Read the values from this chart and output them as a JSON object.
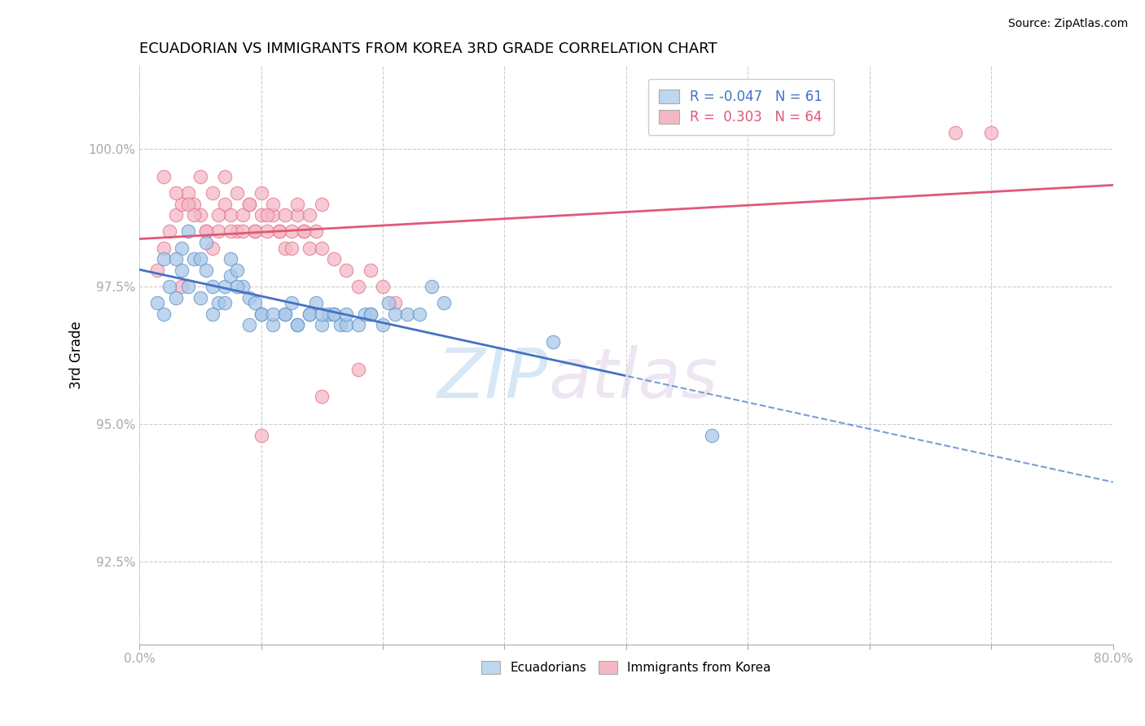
{
  "title": "ECUADORIAN VS IMMIGRANTS FROM KOREA 3RD GRADE CORRELATION CHART",
  "source": "Source: ZipAtlas.com",
  "xlabel": "",
  "ylabel": "3rd Grade",
  "xlim": [
    0.0,
    80.0
  ],
  "ylim": [
    91.0,
    101.5
  ],
  "xticks": [
    0.0,
    10.0,
    20.0,
    30.0,
    40.0,
    50.0,
    60.0,
    70.0,
    80.0
  ],
  "xtick_labels": [
    "0.0%",
    "",
    "",
    "",
    "",
    "",
    "",
    "",
    "80.0%"
  ],
  "ytick_vals": [
    92.5,
    95.0,
    97.5,
    100.0
  ],
  "ytick_labels": [
    "92.5%",
    "95.0%",
    "97.5%",
    "100.0%"
  ],
  "blue_label": "Ecuadorians",
  "pink_label": "Immigrants from Korea",
  "blue_R": -0.047,
  "blue_N": 61,
  "pink_R": 0.303,
  "pink_N": 64,
  "blue_color": "#A8C8E8",
  "pink_color": "#F5B8C4",
  "blue_edge_color": "#6090C8",
  "pink_edge_color": "#E07090",
  "blue_line_color": "#4472C4",
  "pink_line_color": "#E05878",
  "legend_box_blue": "#BDD7EE",
  "legend_box_pink": "#F4B8C4",
  "watermark_zip": "ZIP",
  "watermark_atlas": "atlas",
  "blue_scatter_x": [
    1.5,
    2.0,
    2.5,
    3.0,
    3.5,
    3.5,
    4.0,
    4.5,
    5.0,
    5.5,
    5.5,
    6.0,
    6.5,
    7.0,
    7.5,
    7.5,
    8.0,
    8.5,
    9.0,
    9.5,
    10.0,
    11.0,
    12.0,
    12.5,
    13.0,
    14.0,
    14.5,
    15.0,
    15.5,
    16.0,
    16.5,
    17.0,
    18.0,
    18.5,
    19.0,
    20.0,
    20.5,
    21.0,
    22.0,
    23.0,
    24.0,
    25.0,
    2.0,
    3.0,
    4.0,
    5.0,
    6.0,
    7.0,
    8.0,
    9.0,
    10.0,
    11.0,
    12.0,
    13.0,
    14.0,
    15.0,
    16.0,
    17.0,
    19.0,
    34.0,
    47.0
  ],
  "blue_scatter_y": [
    97.2,
    97.0,
    97.5,
    97.3,
    97.8,
    98.2,
    98.5,
    98.0,
    98.0,
    98.3,
    97.8,
    97.5,
    97.2,
    97.5,
    98.0,
    97.7,
    97.8,
    97.5,
    97.3,
    97.2,
    97.0,
    96.8,
    97.0,
    97.2,
    96.8,
    97.0,
    97.2,
    96.8,
    97.0,
    97.0,
    96.8,
    96.8,
    96.8,
    97.0,
    97.0,
    96.8,
    97.2,
    97.0,
    97.0,
    97.0,
    97.5,
    97.2,
    98.0,
    98.0,
    97.5,
    97.3,
    97.0,
    97.2,
    97.5,
    96.8,
    97.0,
    97.0,
    97.0,
    96.8,
    97.0,
    97.0,
    97.0,
    97.0,
    97.0,
    96.5,
    94.8
  ],
  "pink_scatter_x": [
    1.5,
    2.0,
    2.5,
    3.0,
    3.5,
    4.0,
    4.5,
    5.0,
    5.5,
    6.0,
    6.5,
    7.0,
    7.5,
    8.0,
    8.5,
    9.0,
    9.5,
    10.0,
    10.5,
    11.0,
    11.5,
    12.0,
    12.5,
    13.0,
    13.5,
    14.0,
    14.5,
    15.0,
    16.0,
    17.0,
    18.0,
    19.0,
    20.0,
    21.0,
    2.0,
    3.0,
    4.0,
    5.0,
    6.0,
    7.0,
    8.0,
    9.0,
    10.0,
    11.0,
    12.0,
    13.0,
    14.0,
    15.0,
    4.5,
    5.5,
    6.5,
    7.5,
    8.5,
    9.5,
    10.5,
    11.5,
    12.5,
    13.5,
    3.5,
    10.0,
    15.0,
    18.0,
    67.0,
    70.0
  ],
  "pink_scatter_y": [
    97.8,
    98.2,
    98.5,
    98.8,
    99.0,
    99.2,
    99.0,
    98.8,
    98.5,
    98.2,
    98.5,
    99.0,
    98.8,
    98.5,
    98.8,
    99.0,
    98.5,
    98.8,
    98.5,
    98.8,
    98.5,
    98.2,
    98.5,
    98.8,
    98.5,
    98.2,
    98.5,
    98.2,
    98.0,
    97.8,
    97.5,
    97.8,
    97.5,
    97.2,
    99.5,
    99.2,
    99.0,
    99.5,
    99.2,
    99.5,
    99.2,
    99.0,
    99.2,
    99.0,
    98.8,
    99.0,
    98.8,
    99.0,
    98.8,
    98.5,
    98.8,
    98.5,
    98.5,
    98.5,
    98.8,
    98.5,
    98.2,
    98.5,
    97.5,
    94.8,
    95.5,
    96.0,
    100.3,
    100.3
  ]
}
